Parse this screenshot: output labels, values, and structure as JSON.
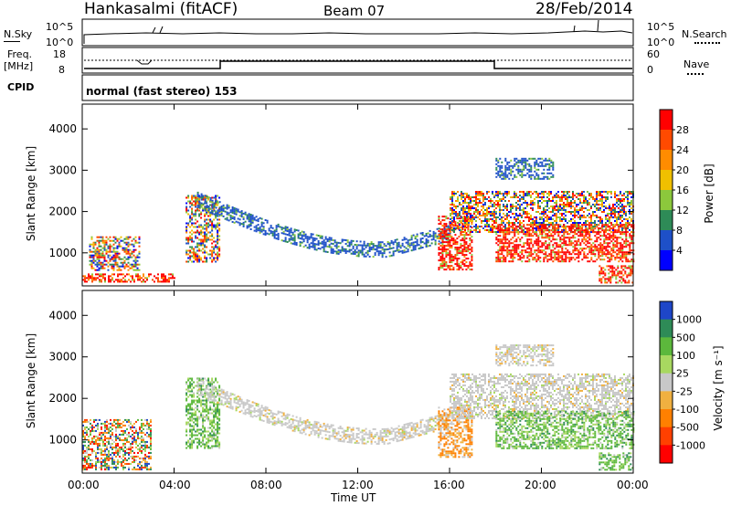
{
  "header": {
    "station": "Hankasalmi (fitACF)",
    "beam": "Beam 07",
    "date": "28/Feb/2014"
  },
  "nsky_panel": {
    "left_label": "N.Sky",
    "left_ticks": [
      "10^5",
      "10^0"
    ],
    "right_ticks": [
      "10^5",
      "10^0"
    ],
    "right_label": "N.Search"
  },
  "freq_panel": {
    "left_label_line1": "Freq.",
    "left_label_line2": "[MHz]",
    "left_ticks": [
      "18",
      "8"
    ],
    "right_ticks": [
      "60",
      "0"
    ],
    "right_label": "Nave"
  },
  "cpid_panel": {
    "label": "CPID",
    "program": "normal (fast stereo) 153"
  },
  "power_panel": {
    "ylabel": "Slant Range [km]",
    "colorbar_label": "Power [dB]",
    "colorbar_ticks": [
      "28",
      "24",
      "20",
      "16",
      "12",
      "8",
      "4"
    ],
    "colorbar_colors": [
      "#ff0000",
      "#ff4a00",
      "#ff8c00",
      "#f0c000",
      "#8cc83c",
      "#2e8b57",
      "#1e50c8",
      "#0000ff"
    ]
  },
  "velocity_panel": {
    "ylabel": "Slant Range [km]",
    "colorbar_label": "Velocity [m s⁻¹]",
    "colorbar_ticks": [
      "1000",
      "500",
      "100",
      "25",
      "-25",
      "-100",
      "-500",
      "-1000"
    ],
    "colorbar_colors": [
      "#1e46c8",
      "#2e8b57",
      "#5cb83c",
      "#a8d860",
      "#c8c8c8",
      "#f0b040",
      "#ff8000",
      "#ff4000",
      "#ff0000"
    ]
  },
  "xaxis": {
    "label": "Time UT",
    "ticks": [
      "00:00",
      "04:00",
      "08:00",
      "12:00",
      "16:00",
      "20:00",
      "00:00"
    ]
  },
  "chart_data": [
    {
      "type": "heatmap",
      "title": "Power",
      "xlabel": "Time UT",
      "ylabel": "Slant Range [km]",
      "xlim": [
        0,
        24
      ],
      "ylim": [
        200,
        4600
      ],
      "yticks": [
        1000,
        2000,
        3000,
        4000
      ],
      "colorbar": {
        "label": "Power [dB]",
        "ticks": [
          4,
          8,
          12,
          16,
          20,
          24,
          28
        ],
        "range": [
          0,
          30
        ]
      },
      "regions": [
        {
          "t_start": 0.0,
          "t_end": 4.0,
          "range_low": 300,
          "range_high": 500,
          "level": "high"
        },
        {
          "t_start": 0.3,
          "t_end": 2.5,
          "range_low": 600,
          "range_high": 1400,
          "level": "mixed"
        },
        {
          "t_start": 4.5,
          "t_end": 6.0,
          "range_low": 800,
          "range_high": 2400,
          "level": "mixed"
        },
        {
          "t_start": 5.0,
          "t_end": 16.0,
          "range_low": 900,
          "range_high": 2300,
          "level": "low",
          "shape": "curved arc descending from 2300 km to 1100 km"
        },
        {
          "t_start": 15.5,
          "t_end": 17.0,
          "range_low": 600,
          "range_high": 1900,
          "level": "high"
        },
        {
          "t_start": 16.0,
          "t_end": 24.0,
          "range_low": 1500,
          "range_high": 2500,
          "level": "mixed"
        },
        {
          "t_start": 18.0,
          "t_end": 24.0,
          "range_low": 800,
          "range_high": 1700,
          "level": "high"
        },
        {
          "t_start": 18.0,
          "t_end": 20.5,
          "range_low": 2800,
          "range_high": 3300,
          "level": "low"
        },
        {
          "t_start": 22.5,
          "t_end": 24.0,
          "range_low": 300,
          "range_high": 700,
          "level": "high"
        }
      ]
    },
    {
      "type": "heatmap",
      "title": "Velocity",
      "xlabel": "Time UT",
      "ylabel": "Slant Range [km]",
      "xlim": [
        0,
        24
      ],
      "ylim": [
        200,
        4600
      ],
      "yticks": [
        1000,
        2000,
        3000,
        4000
      ],
      "colorbar": {
        "label": "Velocity [m s⁻¹]",
        "ticks": [
          1000,
          500,
          100,
          25,
          -25,
          -100,
          -500,
          -1000
        ]
      },
      "regions": [
        {
          "t_start": 0.0,
          "t_end": 3.0,
          "range_low": 300,
          "range_high": 1500,
          "level": "mixed"
        },
        {
          "t_start": 4.5,
          "t_end": 6.0,
          "range_low": 800,
          "range_high": 2500,
          "level": "positive"
        },
        {
          "t_start": 5.0,
          "t_end": 16.0,
          "range_low": 900,
          "range_high": 2300,
          "level": "near-zero",
          "shape": "curved arc"
        },
        {
          "t_start": 15.5,
          "t_end": 17.0,
          "range_low": 600,
          "range_high": 1800,
          "level": "negative"
        },
        {
          "t_start": 16.0,
          "t_end": 24.0,
          "range_low": 1500,
          "range_high": 2600,
          "level": "near-zero"
        },
        {
          "t_start": 18.0,
          "t_end": 24.0,
          "range_low": 800,
          "range_high": 1700,
          "level": "positive"
        },
        {
          "t_start": 18.0,
          "t_end": 20.5,
          "range_low": 2800,
          "range_high": 3300,
          "level": "near-zero"
        },
        {
          "t_start": 22.5,
          "t_end": 24.0,
          "range_low": 300,
          "range_high": 700,
          "level": "positive"
        }
      ]
    }
  ]
}
